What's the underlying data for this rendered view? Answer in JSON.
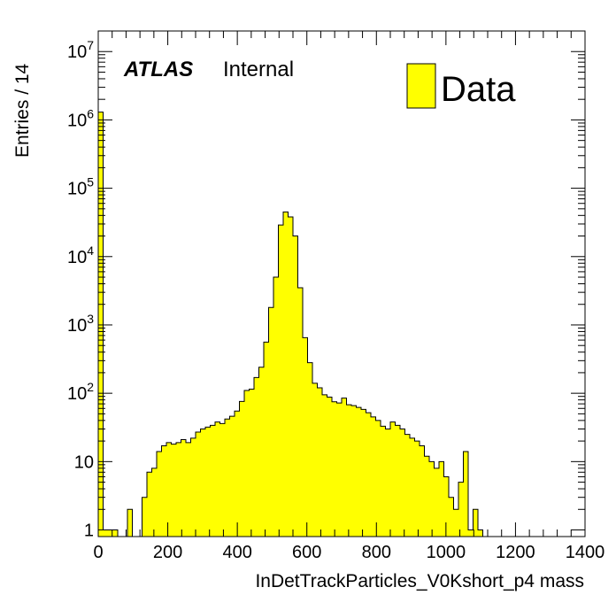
{
  "atlas_label": "ATLAS",
  "atlas_status": "Internal",
  "colors": {
    "fill": "#ffff00",
    "line": "#000000",
    "background": "#ffffff"
  },
  "chart_data": {
    "type": "histogram",
    "xlabel": "InDetTrackParticles_V0Kshort_p4 mass",
    "ylabel": "Entries / 14",
    "xlim": [
      0,
      1400
    ],
    "ylim": [
      0.8,
      20000000
    ],
    "yscale": "log",
    "bin_width": 14,
    "x_ticks": [
      0,
      200,
      400,
      600,
      800,
      1000,
      1200,
      1400
    ],
    "y_ticks": [
      {
        "value": 1,
        "base": "1",
        "exp": ""
      },
      {
        "value": 10,
        "base": "10",
        "exp": ""
      },
      {
        "value": 100,
        "base": "10",
        "exp": "2"
      },
      {
        "value": 1000,
        "base": "10",
        "exp": "3"
      },
      {
        "value": 10000,
        "base": "10",
        "exp": "4"
      },
      {
        "value": 100000,
        "base": "10",
        "exp": "5"
      },
      {
        "value": 1000000,
        "base": "10",
        "exp": "6"
      },
      {
        "value": 10000000,
        "base": "10",
        "exp": "7"
      }
    ],
    "legend": [
      {
        "name": "Data",
        "position": "top-right"
      }
    ],
    "series": [
      {
        "name": "Data",
        "bins": [
          [
            0,
            1300000
          ],
          [
            14,
            1
          ],
          [
            28,
            1
          ],
          [
            42,
            1
          ],
          [
            84,
            2
          ],
          [
            126,
            3
          ],
          [
            140,
            7
          ],
          [
            154,
            8
          ],
          [
            168,
            14
          ],
          [
            182,
            17
          ],
          [
            196,
            19
          ],
          [
            210,
            18
          ],
          [
            224,
            19
          ],
          [
            238,
            21
          ],
          [
            252,
            19
          ],
          [
            266,
            22
          ],
          [
            280,
            27
          ],
          [
            294,
            30
          ],
          [
            308,
            32
          ],
          [
            322,
            34
          ],
          [
            336,
            38
          ],
          [
            350,
            36
          ],
          [
            364,
            42
          ],
          [
            378,
            46
          ],
          [
            392,
            55
          ],
          [
            406,
            76
          ],
          [
            420,
            110
          ],
          [
            434,
            115
          ],
          [
            448,
            170
          ],
          [
            462,
            240
          ],
          [
            476,
            560
          ],
          [
            490,
            1800
          ],
          [
            504,
            5000
          ],
          [
            518,
            29000
          ],
          [
            532,
            45000
          ],
          [
            546,
            38000
          ],
          [
            560,
            20000
          ],
          [
            574,
            3500
          ],
          [
            588,
            650
          ],
          [
            602,
            280
          ],
          [
            616,
            140
          ],
          [
            630,
            120
          ],
          [
            644,
            95
          ],
          [
            658,
            88
          ],
          [
            672,
            75
          ],
          [
            686,
            72
          ],
          [
            700,
            85
          ],
          [
            714,
            68
          ],
          [
            728,
            66
          ],
          [
            742,
            62
          ],
          [
            756,
            58
          ],
          [
            770,
            52
          ],
          [
            784,
            45
          ],
          [
            798,
            40
          ],
          [
            812,
            33
          ],
          [
            826,
            30
          ],
          [
            840,
            38
          ],
          [
            854,
            34
          ],
          [
            868,
            30
          ],
          [
            882,
            25
          ],
          [
            896,
            22
          ],
          [
            910,
            20
          ],
          [
            924,
            17
          ],
          [
            938,
            12
          ],
          [
            952,
            10
          ],
          [
            966,
            8
          ],
          [
            980,
            10
          ],
          [
            994,
            6
          ],
          [
            1008,
            3
          ],
          [
            1022,
            2
          ],
          [
            1036,
            5
          ],
          [
            1050,
            14
          ],
          [
            1064,
            1
          ],
          [
            1078,
            2
          ],
          [
            1092,
            1
          ]
        ]
      }
    ]
  }
}
